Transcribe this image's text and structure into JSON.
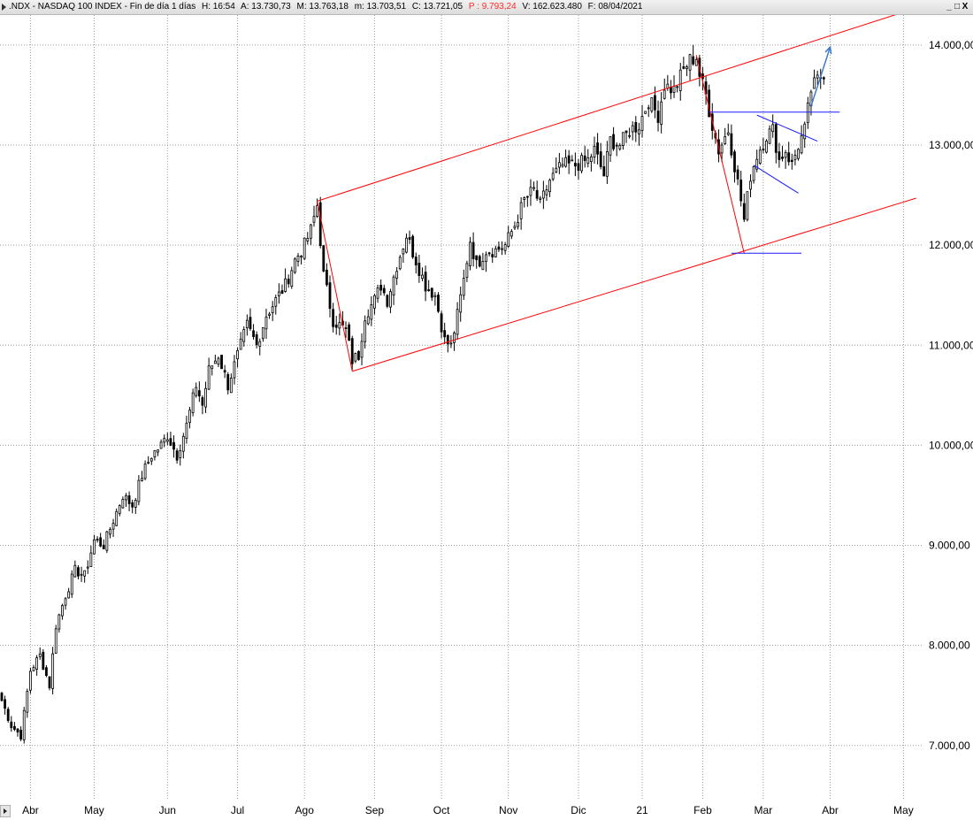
{
  "header": {
    "title": ".NDX - NASDAQ 100 INDEX - Fin de día 1 días",
    "H": "H: 16:54",
    "A": "A: 13.730,73",
    "M": "M: 13.763,18",
    "m": "m: 13.703,51",
    "C": "C: 13.721,05",
    "P": "P : 9.793,24",
    "V": "V: 162.623.480",
    "F": "F: 08/04/2021",
    "controls": [
      "_",
      "□",
      "X"
    ]
  },
  "colors": {
    "channel": "#ff0000",
    "pattern": "#1a1aff",
    "arrow": "#3a78c8",
    "candle": "#000000",
    "grid": "#9a9a9a",
    "p_value": "#ff2a2a"
  },
  "chart_data": {
    "type": "candlestick",
    "title": ".NDX - NASDAQ 100 INDEX",
    "x_labels": [
      "Abr",
      "May",
      "Jun",
      "Jul",
      "Ago",
      "Sep",
      "Oct",
      "Nov",
      "Dic",
      "21",
      "Feb",
      "Mar",
      "Abr",
      "May"
    ],
    "x_label_index": [
      9,
      29,
      52,
      74,
      95,
      117,
      138,
      159,
      181,
      201,
      220,
      239,
      260,
      283
    ],
    "y_ticks": [
      7000,
      8000,
      9000,
      10000,
      11000,
      12000,
      13000,
      14000
    ],
    "y_tick_labels": [
      "7.000,00",
      "8.000,00",
      "9.000,00",
      "10.000,00",
      "11.000,00",
      "12.000,00",
      "13.000,00",
      "14.000,00"
    ],
    "ylim": [
      6450,
      14300
    ],
    "xlim": [
      0,
      289
    ],
    "anchors": [
      [
        0,
        7450
      ],
      [
        3,
        7200
      ],
      [
        6,
        7100
      ],
      [
        9,
        7750
      ],
      [
        12,
        7900
      ],
      [
        15,
        7600
      ],
      [
        17,
        8200
      ],
      [
        20,
        8500
      ],
      [
        23,
        8750
      ],
      [
        26,
        8700
      ],
      [
        29,
        9050
      ],
      [
        32,
        9000
      ],
      [
        35,
        9250
      ],
      [
        38,
        9500
      ],
      [
        41,
        9400
      ],
      [
        44,
        9700
      ],
      [
        47,
        9900
      ],
      [
        50,
        10000
      ],
      [
        52,
        10100
      ],
      [
        55,
        9900
      ],
      [
        58,
        10200
      ],
      [
        61,
        10600
      ],
      [
        63,
        10400
      ],
      [
        65,
        10750
      ],
      [
        68,
        10900
      ],
      [
        71,
        10600
      ],
      [
        74,
        10900
      ],
      [
        77,
        11200
      ],
      [
        80,
        11000
      ],
      [
        83,
        11300
      ],
      [
        86,
        11450
      ],
      [
        89,
        11600
      ],
      [
        92,
        11850
      ],
      [
        95,
        12000
      ],
      [
        97,
        12150
      ],
      [
        99,
        12400
      ],
      [
        101,
        11700
      ],
      [
        104,
        11250
      ],
      [
        108,
        11150
      ],
      [
        110,
        10850
      ],
      [
        112,
        10900
      ],
      [
        114,
        11300
      ],
      [
        117,
        11450
      ],
      [
        119,
        11600
      ],
      [
        121,
        11450
      ],
      [
        124,
        11800
      ],
      [
        127,
        12100
      ],
      [
        130,
        11850
      ],
      [
        133,
        11600
      ],
      [
        136,
        11500
      ],
      [
        139,
        11050
      ],
      [
        141,
        10990
      ],
      [
        143,
        11300
      ],
      [
        145,
        11650
      ],
      [
        147,
        12050
      ],
      [
        149,
        11800
      ],
      [
        152,
        11950
      ],
      [
        155,
        11950
      ],
      [
        158,
        12000
      ],
      [
        161,
        12200
      ],
      [
        164,
        12450
      ],
      [
        167,
        12550
      ],
      [
        169,
        12400
      ],
      [
        172,
        12650
      ],
      [
        176,
        12800
      ],
      [
        180,
        12800
      ],
      [
        184,
        12850
      ],
      [
        186,
        12950
      ],
      [
        189,
        12700
      ],
      [
        191,
        13050
      ],
      [
        194,
        13000
      ],
      [
        197,
        13150
      ],
      [
        200,
        13200
      ],
      [
        203,
        13450
      ],
      [
        206,
        13300
      ],
      [
        208,
        13600
      ],
      [
        211,
        13550
      ],
      [
        214,
        13750
      ],
      [
        216,
        13850
      ],
      [
        218,
        13880
      ],
      [
        219,
        13700
      ],
      [
        221,
        13500
      ],
      [
        223,
        13200
      ],
      [
        225,
        12950
      ],
      [
        228,
        13150
      ],
      [
        230,
        12800
      ],
      [
        232,
        12450
      ],
      [
        233,
        12250
      ],
      [
        235,
        12700
      ],
      [
        237,
        12900
      ],
      [
        240,
        13100
      ],
      [
        242,
        13150
      ],
      [
        244,
        12850
      ],
      [
        246,
        12950
      ],
      [
        248,
        12800
      ],
      [
        250,
        13000
      ],
      [
        252,
        13150
      ],
      [
        254,
        13550
      ],
      [
        256,
        13650
      ],
      [
        258,
        13730
      ]
    ],
    "annotations": {
      "channel_upper": [
        [
          99,
          12440
        ],
        [
          287,
          14370
        ]
      ],
      "channel_lower": [
        [
          110,
          10740
        ],
        [
          287,
          12470
        ]
      ],
      "drop_sep": [
        [
          99,
          12440
        ],
        [
          110,
          10740
        ]
      ],
      "drop_feb": [
        [
          218,
          13900
        ],
        [
          233,
          11920
        ]
      ],
      "resistance": [
        [
          222,
          13330
        ],
        [
          263,
          13330
        ]
      ],
      "support": [
        [
          229,
          11920
        ],
        [
          251,
          11920
        ]
      ],
      "flag_upper": [
        [
          237,
          13300
        ],
        [
          256,
          13040
        ]
      ],
      "flag_lower": [
        [
          236,
          12800
        ],
        [
          250,
          12520
        ]
      ],
      "breakout_arrow": [
        [
          254,
          13390
        ],
        [
          260,
          13980
        ]
      ]
    }
  }
}
